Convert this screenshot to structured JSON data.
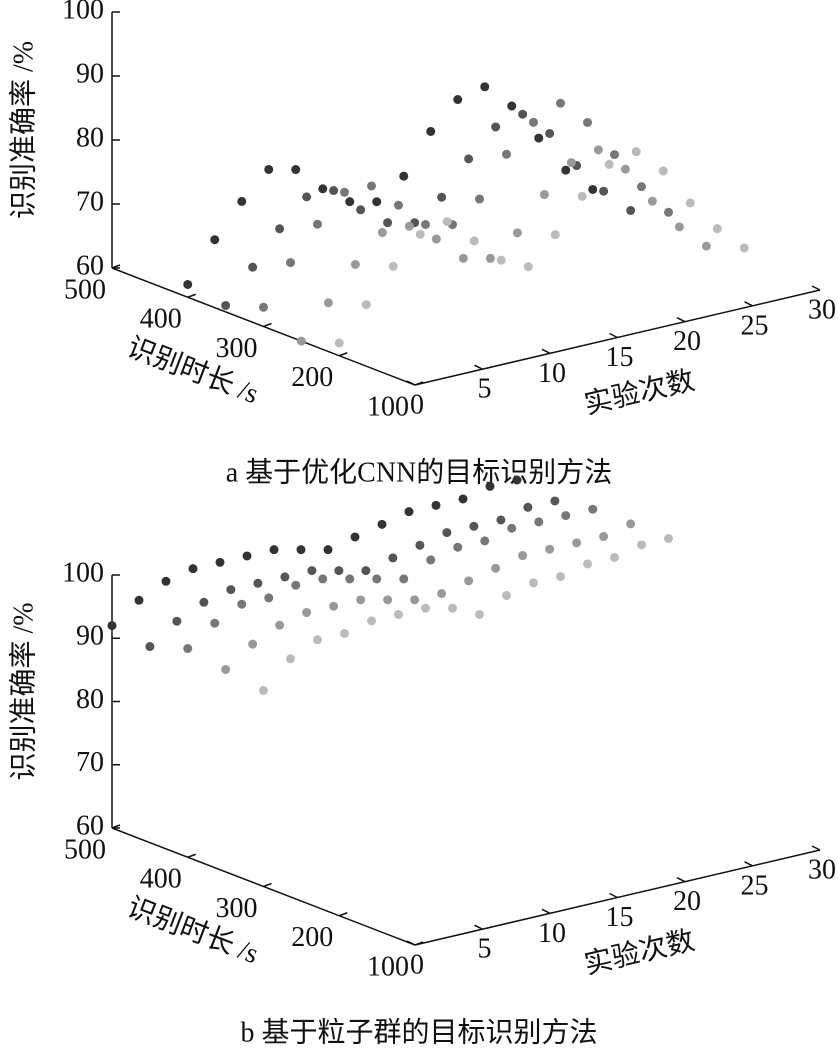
{
  "chart_data": [
    {
      "type": "scatter3d",
      "caption": "a 基于优化CNN的目标识别方法",
      "zlabel": "识别准确率 /%",
      "ylabel": "识别时长 /s",
      "xlabel": "实验次数",
      "xlim": [
        0,
        30
      ],
      "xticks": [
        0,
        5,
        10,
        15,
        20,
        25,
        30
      ],
      "ylim": [
        500,
        100
      ],
      "yticks": [
        500,
        400,
        300,
        200,
        100
      ],
      "zlim": [
        60,
        100
      ],
      "zticks": [
        60,
        70,
        80,
        90,
        100
      ],
      "x": [
        0,
        2,
        4,
        6,
        8,
        10,
        12,
        14,
        16,
        18,
        20,
        22,
        24,
        26,
        28,
        30
      ],
      "series": [
        {
          "color": "#333333",
          "y": 400,
          "values": [
            62,
            68,
            73,
            77,
            76,
            72,
            69,
            68,
            71,
            77,
            81,
            82,
            78,
            72,
            66,
            62
          ]
        },
        {
          "color": "#555555",
          "y": 350,
          "values": [
            61,
            66,
            71,
            75,
            75,
            71,
            68,
            67,
            70,
            75,
            79,
            80,
            76,
            70,
            65,
            61
          ]
        },
        {
          "color": "#777777",
          "y": 300,
          "values": [
            63,
            69,
            74,
            78,
            78,
            74,
            70,
            69,
            72,
            78,
            82,
            84,
            80,
            74,
            68,
            63
          ]
        },
        {
          "color": "#999999",
          "y": 250,
          "values": [
            60,
            65,
            70,
            74,
            74,
            71,
            67,
            66,
            69,
            74,
            78,
            79,
            75,
            69,
            64,
            60
          ]
        },
        {
          "color": "#bbbbbb",
          "y": 200,
          "values": [
            62,
            67,
            72,
            76,
            77,
            73,
            69,
            67,
            71,
            76,
            80,
            81,
            77,
            71,
            66,
            62
          ]
        }
      ]
    },
    {
      "type": "scatter3d",
      "caption": "b 基于粒子群的目标识别方法",
      "zlabel": "识别准确率 /%",
      "ylabel": "识别时长 /s",
      "xlabel": "实验次数",
      "xlim": [
        0,
        30
      ],
      "xticks": [
        0,
        5,
        10,
        15,
        20,
        25,
        30
      ],
      "ylim": [
        500,
        100
      ],
      "yticks": [
        500,
        400,
        300,
        200,
        100
      ],
      "zlim": [
        60,
        100
      ],
      "zticks": [
        60,
        70,
        80,
        90,
        100
      ],
      "x": [
        0,
        2,
        4,
        6,
        8,
        10,
        12,
        14,
        16,
        18,
        20,
        22,
        24,
        26,
        28,
        30
      ],
      "series": [
        {
          "color": "#333333",
          "y": 500,
          "values": [
            92,
            95,
            97,
            98,
            98,
            98,
            98,
            97,
            96,
            97,
            98,
            99,
            99,
            99,
            100,
            100
          ]
        },
        {
          "color": "#555555",
          "y": 450,
          "values": [
            91,
            94,
            96,
            97,
            97,
            97,
            97,
            96,
            95,
            96,
            97,
            98,
            98,
            98,
            99,
            99
          ]
        },
        {
          "color": "#777777",
          "y": 400,
          "values": [
            93,
            96,
            98,
            98,
            99,
            99,
            98,
            97,
            96,
            98,
            99,
            99,
            100,
            100,
            100,
            100
          ]
        },
        {
          "color": "#999999",
          "y": 350,
          "values": [
            92,
            95,
            97,
            98,
            98,
            98,
            97,
            96,
            96,
            97,
            98,
            99,
            99,
            99,
            99,
            100
          ]
        },
        {
          "color": "#bbbbbb",
          "y": 300,
          "values": [
            91,
            95,
            97,
            97,
            98,
            98,
            98,
            97,
            95,
            97,
            98,
            98,
            99,
            99,
            100,
            100
          ]
        }
      ]
    }
  ]
}
